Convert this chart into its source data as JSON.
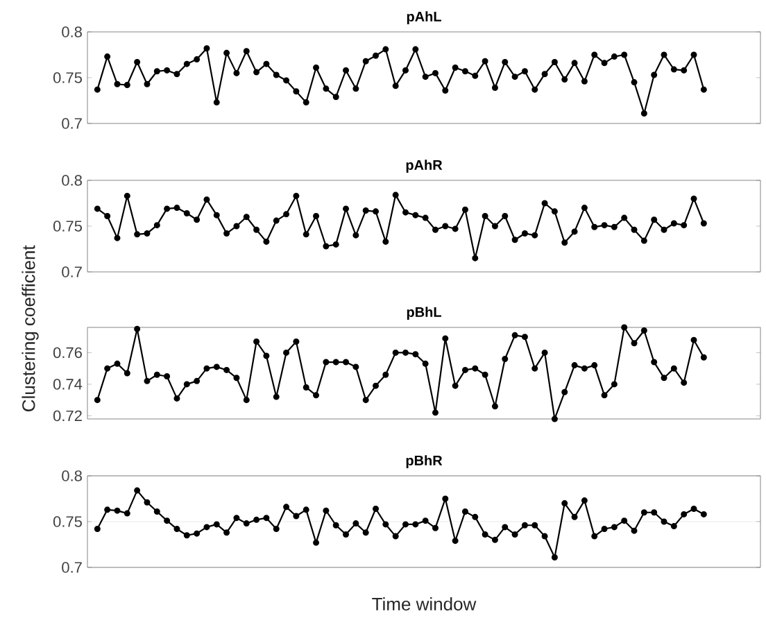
{
  "chart_data": [
    {
      "type": "line",
      "title": "pAhL",
      "color": "#000000",
      "marker": "circle",
      "tick_labels": "y",
      "ylim": [
        0.7,
        0.8
      ],
      "yticks": [
        0.7,
        0.75,
        0.8
      ],
      "categories": [
        null,
        null,
        null,
        null,
        null,
        null,
        null,
        null,
        null,
        null,
        null,
        null,
        null,
        null,
        null,
        null,
        null,
        null,
        null,
        null,
        null,
        null,
        null,
        null,
        null,
        null,
        null,
        null,
        null,
        null,
        null,
        null,
        null,
        null,
        null,
        null,
        null,
        null,
        null,
        null,
        null,
        null,
        null,
        null,
        null,
        null,
        null,
        null,
        null,
        null,
        null,
        null,
        null,
        null,
        null,
        null,
        null,
        null,
        null,
        null,
        null,
        null
      ],
      "values": [
        0.737,
        0.773,
        0.743,
        0.742,
        0.767,
        0.743,
        0.757,
        0.758,
        0.754,
        0.765,
        0.77,
        0.782,
        0.723,
        0.777,
        0.755,
        0.779,
        0.756,
        0.765,
        0.753,
        0.747,
        0.735,
        0.723,
        0.761,
        0.738,
        0.729,
        0.758,
        0.738,
        0.768,
        0.774,
        0.781,
        0.741,
        0.758,
        0.781,
        0.751,
        0.755,
        0.736,
        0.761,
        0.757,
        0.752,
        0.768,
        0.739,
        0.767,
        0.751,
        0.757,
        0.737,
        0.754,
        0.767,
        0.748,
        0.766,
        0.746,
        0.775,
        0.766,
        0.773,
        0.775,
        0.745,
        0.711,
        0.753,
        0.775,
        0.759,
        0.758,
        0.775,
        0.737
      ]
    },
    {
      "type": "line",
      "title": "pAhR",
      "ylabel": "Clustering coefficient",
      "color": "#000000",
      "marker": "circle",
      "tick_labels": "y",
      "ylim": [
        0.7,
        0.8
      ],
      "yticks": [
        0.7,
        0.75,
        0.8
      ],
      "categories": [
        null,
        null,
        null,
        null,
        null,
        null,
        null,
        null,
        null,
        null,
        null,
        null,
        null,
        null,
        null,
        null,
        null,
        null,
        null,
        null,
        null,
        null,
        null,
        null,
        null,
        null,
        null,
        null,
        null,
        null,
        null,
        null,
        null,
        null,
        null,
        null,
        null,
        null,
        null,
        null,
        null,
        null,
        null,
        null,
        null,
        null,
        null,
        null,
        null,
        null,
        null,
        null,
        null,
        null,
        null,
        null,
        null,
        null,
        null,
        null,
        null,
        null
      ],
      "values": [
        0.769,
        0.761,
        0.737,
        0.783,
        0.741,
        0.742,
        0.751,
        0.769,
        0.77,
        0.764,
        0.757,
        0.779,
        0.762,
        0.742,
        0.75,
        0.76,
        0.746,
        0.733,
        0.756,
        0.763,
        0.783,
        0.741,
        0.761,
        0.728,
        0.73,
        0.769,
        0.74,
        0.767,
        0.766,
        0.733,
        0.784,
        0.765,
        0.762,
        0.759,
        0.746,
        0.75,
        0.747,
        0.768,
        0.715,
        0.761,
        0.75,
        0.761,
        0.735,
        0.742,
        0.74,
        0.775,
        0.766,
        0.732,
        0.744,
        0.77,
        0.749,
        0.751,
        0.749,
        0.759,
        0.746,
        0.734,
        0.757,
        0.746,
        0.753,
        0.751,
        0.78,
        0.753
      ]
    },
    {
      "type": "line",
      "title": "pBhL",
      "color": "#000000",
      "marker": "circle",
      "tick_labels": "y",
      "ylim": [
        0.718,
        0.776
      ],
      "yticks": [
        0.72,
        0.74,
        0.76
      ],
      "categories": [
        null,
        null,
        null,
        null,
        null,
        null,
        null,
        null,
        null,
        null,
        null,
        null,
        null,
        null,
        null,
        null,
        null,
        null,
        null,
        null,
        null,
        null,
        null,
        null,
        null,
        null,
        null,
        null,
        null,
        null,
        null,
        null,
        null,
        null,
        null,
        null,
        null,
        null,
        null,
        null,
        null,
        null,
        null,
        null,
        null,
        null,
        null,
        null,
        null,
        null,
        null,
        null,
        null,
        null,
        null,
        null,
        null,
        null,
        null,
        null,
        null,
        null
      ],
      "values": [
        0.73,
        0.75,
        0.753,
        0.747,
        0.775,
        0.742,
        0.746,
        0.745,
        0.731,
        0.74,
        0.742,
        0.75,
        0.751,
        0.749,
        0.744,
        0.73,
        0.767,
        0.758,
        0.732,
        0.76,
        0.767,
        0.738,
        0.733,
        0.754,
        0.754,
        0.754,
        0.751,
        0.73,
        0.739,
        0.746,
        0.76,
        0.76,
        0.759,
        0.753,
        0.722,
        0.769,
        0.739,
        0.749,
        0.75,
        0.746,
        0.726,
        0.756,
        0.771,
        0.77,
        0.75,
        0.76,
        0.718,
        0.735,
        0.752,
        0.75,
        0.752,
        0.733,
        0.74,
        0.776,
        0.766,
        0.774,
        0.754,
        0.744,
        0.75,
        0.741,
        0.768,
        0.757
      ]
    },
    {
      "type": "line",
      "title": "pBhR",
      "xlabel": "Time window",
      "color": "#000000",
      "marker": "circle",
      "tick_labels": "y",
      "grid": "y",
      "ylim": [
        0.7,
        0.8
      ],
      "yticks": [
        0.7,
        0.75,
        0.8
      ],
      "categories": [
        null,
        null,
        null,
        null,
        null,
        null,
        null,
        null,
        null,
        null,
        null,
        null,
        null,
        null,
        null,
        null,
        null,
        null,
        null,
        null,
        null,
        null,
        null,
        null,
        null,
        null,
        null,
        null,
        null,
        null,
        null,
        null,
        null,
        null,
        null,
        null,
        null,
        null,
        null,
        null,
        null,
        null,
        null,
        null,
        null,
        null,
        null,
        null,
        null,
        null,
        null,
        null,
        null,
        null,
        null,
        null,
        null,
        null,
        null,
        null,
        null,
        null
      ],
      "values": [
        0.742,
        0.763,
        0.762,
        0.759,
        0.784,
        0.771,
        0.761,
        0.751,
        0.742,
        0.735,
        0.737,
        0.744,
        0.747,
        0.738,
        0.754,
        0.748,
        0.752,
        0.754,
        0.742,
        0.766,
        0.756,
        0.763,
        0.727,
        0.762,
        0.746,
        0.736,
        0.748,
        0.738,
        0.764,
        0.747,
        0.734,
        0.747,
        0.747,
        0.751,
        0.743,
        0.775,
        0.729,
        0.761,
        0.755,
        0.736,
        0.73,
        0.744,
        0.736,
        0.746,
        0.746,
        0.734,
        0.711,
        0.77,
        0.755,
        0.773,
        0.734,
        0.742,
        0.744,
        0.751,
        0.74,
        0.76,
        0.76,
        0.75,
        0.745,
        0.758,
        0.764,
        0.758
      ]
    }
  ]
}
